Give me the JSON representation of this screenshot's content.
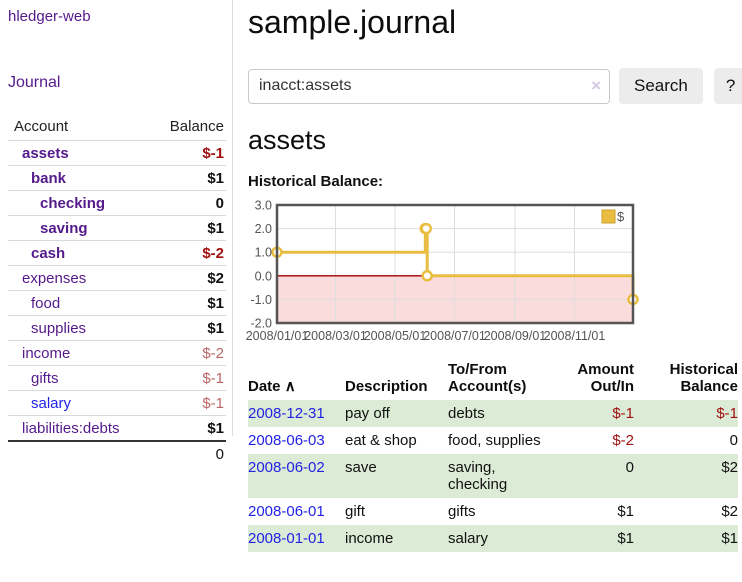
{
  "app": {
    "brand": "hledger-web",
    "nav_journal": "Journal"
  },
  "sidebar": {
    "headers": {
      "account": "Account",
      "balance": "Balance"
    },
    "accounts": [
      {
        "name": "assets",
        "indent": 1,
        "bold": true,
        "balance": "$-1",
        "balance_style": "neg-strong"
      },
      {
        "name": "bank",
        "indent": 2,
        "bold": true,
        "balance": "$1",
        "balance_style": "pos"
      },
      {
        "name": "checking",
        "indent": 3,
        "bold": true,
        "balance": "0",
        "balance_style": "pos"
      },
      {
        "name": "saving",
        "indent": 3,
        "bold": true,
        "balance": "$1",
        "balance_style": "pos"
      },
      {
        "name": "cash",
        "indent": 2,
        "bold": true,
        "balance": "$-2",
        "balance_style": "neg-strong"
      },
      {
        "name": "expenses",
        "indent": 1,
        "bold": false,
        "balance": "$2",
        "balance_style": "pos"
      },
      {
        "name": "food",
        "indent": 2,
        "bold": false,
        "balance": "$1",
        "balance_style": "pos"
      },
      {
        "name": "supplies",
        "indent": 2,
        "bold": false,
        "balance": "$1",
        "balance_style": "pos"
      },
      {
        "name": "income",
        "indent": 1,
        "bold": false,
        "balance": "$-2",
        "balance_style": "neg-soft"
      },
      {
        "name": "gifts",
        "indent": 2,
        "bold": false,
        "balance": "$-1",
        "balance_style": "neg-soft"
      },
      {
        "name": "salary",
        "indent": 2,
        "bold": false,
        "balance": "$-1",
        "balance_style": "neg-soft",
        "link_style": "blue"
      },
      {
        "name": "liabilities:debts",
        "indent": 1,
        "bold": false,
        "balance": "$1",
        "balance_style": "pos"
      }
    ],
    "total": "0"
  },
  "header": {
    "title": "sample.journal"
  },
  "search": {
    "value": "inacct:assets",
    "clear_icon": "×",
    "button": "Search",
    "help_button": "?"
  },
  "main": {
    "account_title": "assets",
    "chart_label": "Historical Balance:"
  },
  "chart_data": {
    "type": "line",
    "step": true,
    "title": "Historical Balance",
    "series": [
      {
        "name": "$",
        "color": "#e8bd40",
        "points": [
          [
            "2008-01-01",
            1
          ],
          [
            "2008-06-01",
            2
          ],
          [
            "2008-06-02",
            2
          ],
          [
            "2008-06-03",
            0
          ],
          [
            "2008-12-31",
            -1
          ]
        ]
      }
    ],
    "xrange": [
      "2008-01-01",
      "2008-12-31"
    ],
    "ylim": [
      -2,
      3
    ],
    "yticks": [
      3,
      2,
      1,
      0,
      -1,
      -2
    ],
    "xticks": [
      {
        "date": "2008-01-01",
        "label": "2008/01/01"
      },
      {
        "date": "2008-03-01",
        "label": "2008/03/01"
      },
      {
        "date": "2008-05-01",
        "label": "2008/05/01"
      },
      {
        "date": "2008-07-01",
        "label": "2008/07/01"
      },
      {
        "date": "2008-09-01",
        "label": "2008/09/01"
      },
      {
        "date": "2008-11-01",
        "label": "2008/11/01"
      }
    ],
    "grid": true,
    "legend": {
      "label": "$",
      "position": "top-right"
    },
    "negative_region_color": "#fadcdc",
    "zero_line_color": "#a40000",
    "axis_color": "#545454"
  },
  "transactions": {
    "headers": {
      "date": "Date",
      "sort_icon": "∧",
      "description": "Description",
      "accounts": "To/From\nAccount(s)",
      "amount": "Amount\nOut/In",
      "balance": "Historical\nBalance"
    },
    "rows": [
      {
        "date": "2008-12-31",
        "description": "pay off",
        "accounts": "debts",
        "amount": "$-1",
        "amount_neg": true,
        "balance": "$-1",
        "balance_neg": true
      },
      {
        "date": "2008-06-03",
        "description": "eat & shop",
        "accounts": "food, supplies",
        "amount": "$-2",
        "amount_neg": true,
        "balance": "0",
        "balance_neg": false
      },
      {
        "date": "2008-06-02",
        "description": "save",
        "accounts": "saving, checking",
        "amount": "0",
        "amount_neg": false,
        "balance": "$2",
        "balance_neg": false
      },
      {
        "date": "2008-06-01",
        "description": "gift",
        "accounts": "gifts",
        "amount": "$1",
        "amount_neg": false,
        "balance": "$2",
        "balance_neg": false
      },
      {
        "date": "2008-01-01",
        "description": "income",
        "accounts": "salary",
        "amount": "$1",
        "amount_neg": false,
        "balance": "$1",
        "balance_neg": false
      }
    ]
  },
  "colors": {
    "link_visited_purple": "#551a8b",
    "link_blue": "#2222e6",
    "negative_strong": "#a01010",
    "negative_soft": "#bb6666",
    "row_stripe_green": "#dcebd5",
    "chart_line_yellow": "#e8bd40",
    "chart_negative_pink": "#fadcdc",
    "chart_zero_line": "#a40000"
  }
}
